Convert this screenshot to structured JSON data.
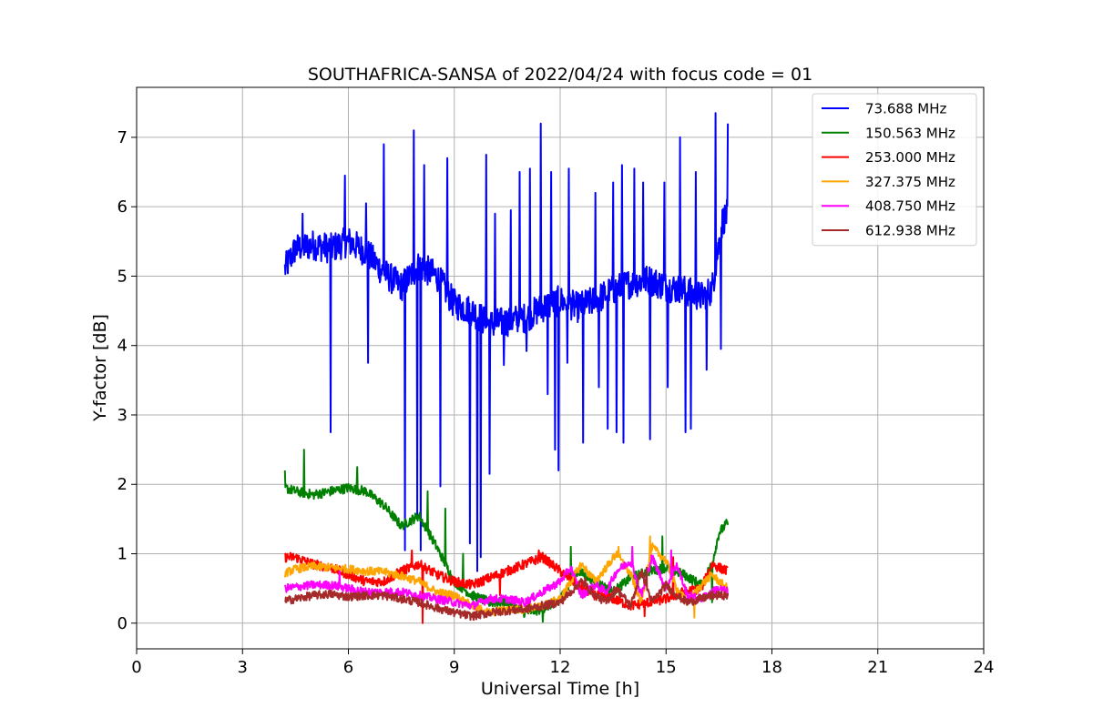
{
  "chart_data": {
    "type": "line",
    "title": "SOUTHAFRICA-SANSA of 2022/04/24 with focus code = 01",
    "xlabel": "Universal Time [h]",
    "ylabel": "Y-factor [dB]",
    "xlim": [
      0,
      24
    ],
    "ylim": [
      -0.37,
      7.72
    ],
    "xticks": [
      0,
      3,
      6,
      9,
      12,
      15,
      18,
      21,
      24
    ],
    "yticks": [
      0,
      1,
      2,
      3,
      4,
      5,
      6,
      7
    ],
    "grid": true,
    "legend_position": "top-right",
    "series": [
      {
        "name": " 73.688 MHz",
        "color": "#0000ff",
        "x": [
          4.2,
          4.5,
          5.0,
          5.5,
          6.0,
          6.5,
          7.0,
          7.5,
          8.0,
          8.5,
          9.0,
          9.5,
          10.0,
          10.5,
          11.0,
          11.5,
          12.0,
          12.5,
          13.0,
          13.5,
          14.0,
          14.5,
          15.0,
          15.5,
          16.0,
          16.3,
          16.6,
          16.75
        ],
        "y": [
          5.1,
          5.4,
          5.45,
          5.4,
          5.5,
          5.35,
          5.05,
          4.85,
          5.15,
          5.0,
          4.6,
          4.5,
          4.3,
          4.35,
          4.4,
          4.55,
          4.65,
          4.55,
          4.65,
          4.8,
          4.9,
          4.95,
          4.85,
          4.8,
          4.7,
          4.8,
          5.8,
          5.9
        ],
        "spikes_up": [
          [
            4.7,
            5.9
          ],
          [
            5.9,
            6.45
          ],
          [
            6.5,
            6.05
          ],
          [
            7.0,
            6.9
          ],
          [
            7.85,
            7.1
          ],
          [
            8.15,
            6.6
          ],
          [
            8.8,
            6.7
          ],
          [
            9.45,
            6.5
          ],
          [
            9.9,
            6.75
          ],
          [
            10.15,
            5.9
          ],
          [
            10.6,
            5.95
          ],
          [
            10.85,
            6.5
          ],
          [
            11.15,
            6.55
          ],
          [
            11.45,
            7.2
          ],
          [
            11.75,
            6.5
          ],
          [
            12.25,
            6.55
          ],
          [
            12.65,
            6.6
          ],
          [
            13.0,
            6.2
          ],
          [
            13.5,
            6.35
          ],
          [
            13.75,
            6.6
          ],
          [
            14.1,
            6.55
          ],
          [
            14.35,
            6.35
          ],
          [
            14.95,
            6.35
          ],
          [
            15.4,
            7.0
          ],
          [
            15.85,
            6.5
          ],
          [
            16.4,
            7.35
          ],
          [
            16.75,
            7.2
          ]
        ],
        "spikes_down": [
          [
            5.5,
            2.75
          ],
          [
            6.55,
            3.75
          ],
          [
            7.6,
            1.05
          ],
          [
            7.95,
            1.55
          ],
          [
            8.05,
            1.05
          ],
          [
            8.6,
            1.97
          ],
          [
            9.45,
            1.15
          ],
          [
            9.65,
            0.75
          ],
          [
            9.75,
            0.95
          ],
          [
            10.0,
            2.15
          ],
          [
            10.4,
            3.72
          ],
          [
            11.05,
            3.92
          ],
          [
            11.65,
            3.3
          ],
          [
            11.85,
            2.5
          ],
          [
            11.95,
            2.2
          ],
          [
            12.2,
            3.75
          ],
          [
            12.65,
            2.6
          ],
          [
            13.1,
            3.4
          ],
          [
            13.35,
            2.8
          ],
          [
            13.6,
            2.75
          ],
          [
            13.8,
            2.6
          ],
          [
            14.55,
            2.65
          ],
          [
            15.05,
            3.4
          ],
          [
            15.55,
            2.75
          ],
          [
            15.7,
            2.8
          ],
          [
            16.15,
            3.65
          ],
          [
            16.55,
            3.95
          ]
        ]
      },
      {
        "name": "150.563 MHz",
        "color": "#008000",
        "x": [
          4.2,
          4.5,
          5.0,
          5.5,
          6.0,
          6.5,
          7.0,
          7.5,
          8.0,
          8.5,
          9.0,
          9.5,
          10.0,
          10.5,
          11.0,
          11.5,
          12.0,
          12.5,
          13.0,
          13.5,
          14.0,
          14.5,
          15.0,
          15.5,
          16.0,
          16.3,
          16.5,
          16.75
        ],
        "y": [
          1.95,
          1.9,
          1.85,
          1.9,
          1.95,
          1.9,
          1.7,
          1.4,
          1.55,
          1.1,
          0.6,
          0.4,
          0.3,
          0.3,
          0.15,
          0.2,
          0.35,
          0.75,
          0.6,
          0.45,
          0.65,
          0.75,
          0.8,
          0.7,
          0.55,
          0.85,
          1.3,
          1.45
        ],
        "spikes_up": [
          [
            4.2,
            2.2
          ],
          [
            4.75,
            2.5
          ],
          [
            6.25,
            2.25
          ],
          [
            8.25,
            1.9
          ],
          [
            8.75,
            1.65
          ],
          [
            9.25,
            1.0
          ],
          [
            12.3,
            1.1
          ],
          [
            14.9,
            1.25
          ],
          [
            16.8,
            1.8
          ]
        ],
        "spikes_down": [
          [
            11.5,
            0.02
          ],
          [
            16.3,
            0.3
          ]
        ]
      },
      {
        "name": "253.000 MHz",
        "color": "#ff0000",
        "x": [
          4.2,
          4.5,
          5.0,
          5.5,
          6.0,
          6.5,
          7.0,
          7.5,
          8.0,
          8.5,
          9.0,
          9.5,
          10.0,
          10.5,
          11.0,
          11.5,
          12.0,
          12.5,
          13.0,
          13.5,
          14.0,
          14.5,
          15.0,
          15.5,
          16.0,
          16.3,
          16.5,
          16.75
        ],
        "y": [
          0.95,
          0.95,
          0.85,
          0.8,
          0.7,
          0.6,
          0.6,
          0.75,
          0.85,
          0.7,
          0.6,
          0.55,
          0.65,
          0.75,
          0.85,
          0.95,
          0.75,
          0.55,
          0.4,
          0.35,
          0.25,
          0.3,
          0.35,
          0.45,
          0.5,
          0.85,
          0.8,
          0.75
        ],
        "spikes_up": [
          [
            7.8,
            1.05
          ],
          [
            11.4,
            1.05
          ],
          [
            15.2,
            0.95
          ]
        ],
        "spikes_down": [
          [
            8.1,
            0.0
          ],
          [
            10.3,
            0.4
          ],
          [
            14.4,
            0.1
          ]
        ]
      },
      {
        "name": "327.375 MHz",
        "color": "#ffa500",
        "x": [
          4.2,
          4.5,
          5.0,
          5.5,
          6.0,
          6.5,
          7.0,
          7.5,
          8.0,
          8.5,
          9.0,
          9.5,
          10.0,
          10.5,
          11.0,
          11.5,
          12.0,
          12.3,
          12.6,
          13.0,
          13.3,
          13.6,
          14.0,
          14.3,
          14.6,
          15.0,
          15.3,
          15.6,
          16.0,
          16.3,
          16.5,
          16.75
        ],
        "y": [
          0.72,
          0.78,
          0.82,
          0.8,
          0.78,
          0.75,
          0.74,
          0.68,
          0.6,
          0.45,
          0.4,
          0.25,
          0.15,
          0.2,
          0.2,
          0.25,
          0.35,
          0.6,
          0.85,
          0.6,
          0.8,
          1.0,
          0.7,
          0.3,
          1.1,
          0.9,
          0.5,
          0.3,
          0.55,
          0.7,
          0.6,
          0.5
        ],
        "spikes_up": [
          [
            14.55,
            1.25
          ],
          [
            13.65,
            1.1
          ]
        ],
        "spikes_down": [
          [
            15.8,
            0.08
          ]
        ]
      },
      {
        "name": "408.750 MHz",
        "color": "#ff00ff",
        "x": [
          4.2,
          4.5,
          5.0,
          5.5,
          6.0,
          6.5,
          7.0,
          7.5,
          8.0,
          8.5,
          9.0,
          9.5,
          10.0,
          10.5,
          11.0,
          11.5,
          12.0,
          12.3,
          12.6,
          13.0,
          13.3,
          13.6,
          14.0,
          14.3,
          14.6,
          15.0,
          15.3,
          15.6,
          16.0,
          16.3,
          16.5,
          16.75
        ],
        "y": [
          0.5,
          0.52,
          0.55,
          0.55,
          0.5,
          0.45,
          0.45,
          0.45,
          0.4,
          0.35,
          0.3,
          0.25,
          0.35,
          0.35,
          0.3,
          0.45,
          0.6,
          0.8,
          0.4,
          0.55,
          0.45,
          0.75,
          0.9,
          0.4,
          0.95,
          0.5,
          0.85,
          0.4,
          0.35,
          0.45,
          0.5,
          0.45
        ],
        "spikes_up": [
          [
            5.75,
            0.75
          ],
          [
            14.05,
            1.1
          ],
          [
            15.15,
            1.05
          ]
        ],
        "spikes_down": []
      },
      {
        "name": "612.938 MHz",
        "color": "#a52a2a",
        "x": [
          4.2,
          4.5,
          5.0,
          5.5,
          6.0,
          6.5,
          7.0,
          7.5,
          8.0,
          8.5,
          9.0,
          9.5,
          10.0,
          10.5,
          11.0,
          11.5,
          12.0,
          12.3,
          12.6,
          13.0,
          13.3,
          13.6,
          14.0,
          14.3,
          14.6,
          15.0,
          15.3,
          15.6,
          16.0,
          16.3,
          16.5,
          16.75
        ],
        "y": [
          0.32,
          0.35,
          0.4,
          0.42,
          0.38,
          0.4,
          0.4,
          0.35,
          0.3,
          0.22,
          0.15,
          0.1,
          0.15,
          0.18,
          0.2,
          0.25,
          0.3,
          0.45,
          0.6,
          0.4,
          0.3,
          0.5,
          0.25,
          0.75,
          0.3,
          0.55,
          0.4,
          0.3,
          0.35,
          0.4,
          0.4,
          0.4
        ],
        "spikes_up": [
          [
            14.45,
            0.8
          ],
          [
            12.7,
            0.65
          ]
        ],
        "spikes_down": []
      }
    ]
  }
}
